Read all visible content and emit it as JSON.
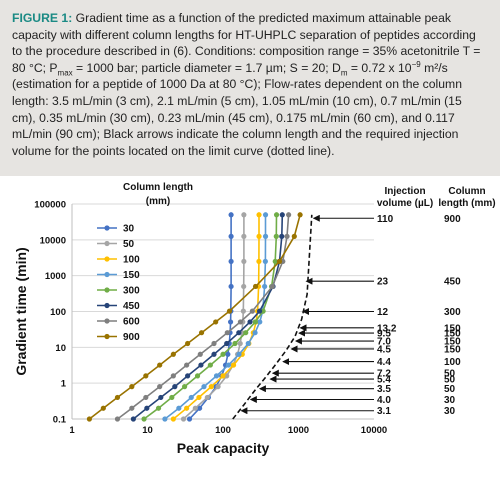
{
  "caption": {
    "label": "FIGURE 1:",
    "t1": " Gradient time as a function of the predicted maximum attainable peak capacity with different column lengths for HT-UHPLC separation of peptides according to the procedure described in (6). Conditions: composition range = 35% acetonitrile T = 80 °C; P",
    "pmax_sub": "max",
    "t2": " = 1000 bar; particle diameter = 1.7 µm; S = 20; D",
    "dm_sub": "m",
    "t3": " = 0.72 x 10",
    "exp": "−9",
    "t4": " m²/s (estimation for a peptide of 1000 Da at 80 °C); Flow-rates dependent on the column length: 3.5 mL/min (3 cm), 2.1 mL/min (5 cm), 1.05 mL/min (10 cm), 0.7 mL/min (15 cm), 0.35 mL/min (30 cm), 0.23 mL/min (45 cm), 0.175 mL/min (60 cm), and 0.117 mL/min (90 cm); Black arrows indicate the column length and the required injection volume for the points located on the limit curve (dotted line)."
  },
  "chart_data": {
    "type": "line",
    "xlabel": "Peak capacity",
    "ylabel": "Gradient time (min)",
    "x_scale": "log",
    "y_scale": "log",
    "xlim": [
      1,
      10000
    ],
    "ylim": [
      0.1,
      100000
    ],
    "x_ticks": [
      "1",
      "10",
      "100",
      "1000",
      "10000"
    ],
    "y_ticks": [
      "0.1",
      "1",
      "10",
      "100",
      "1000",
      "10000",
      "100000"
    ],
    "legend_title": "Column length (mm)",
    "legend_position": "top-left",
    "gt": [
      0.1,
      0.2,
      0.4,
      0.8,
      1.6,
      3.2,
      6.4,
      12.8,
      25.6,
      51.2,
      102.4,
      500,
      2500,
      12500,
      50000
    ],
    "series": [
      {
        "name": "30",
        "color": "#4472c4",
        "x": [
          36,
          49,
          64,
          81,
          96,
          108,
          116,
          121,
          124,
          126,
          127,
          128,
          128,
          128,
          128
        ]
      },
      {
        "name": "50",
        "color": "#a5a5a5",
        "x": [
          30,
          43,
          62,
          86,
          112,
          136,
          156,
          169,
          178,
          183,
          186,
          188,
          189,
          189,
          189
        ]
      },
      {
        "name": "100",
        "color": "#ffc000",
        "x": [
          22,
          33,
          48,
          70,
          100,
          138,
          180,
          220,
          252,
          274,
          287,
          296,
          299,
          300,
          300
        ]
      },
      {
        "name": "150",
        "color": "#5b9bd5",
        "x": [
          17,
          26,
          38,
          56,
          82,
          118,
          163,
          216,
          266,
          307,
          336,
          356,
          364,
          366,
          366
        ]
      },
      {
        "name": "300",
        "color": "#70ad47",
        "x": [
          9,
          14,
          21,
          31,
          46,
          68,
          100,
          144,
          200,
          268,
          340,
          440,
          492,
          508,
          512
        ]
      },
      {
        "name": "450",
        "color": "#264478",
        "x": [
          6.5,
          9.8,
          15,
          23,
          34,
          51,
          76,
          112,
          162,
          228,
          305,
          460,
          560,
          600,
          610
        ]
      },
      {
        "name": "600",
        "color": "#7f7f7f",
        "x": [
          4,
          6.2,
          9.5,
          14.5,
          22,
          33,
          50,
          76,
          114,
          170,
          245,
          450,
          620,
          705,
          740
        ]
      },
      {
        "name": "900",
        "color": "#997300",
        "x": [
          1.7,
          2.6,
          4,
          6.2,
          9.5,
          14.5,
          22,
          34,
          52,
          80,
          122,
          270,
          560,
          880,
          1050
        ]
      }
    ],
    "limit_curve": {
      "x": [
        135,
        190,
        260,
        370,
        480,
        680,
        900,
        1100,
        1300,
        1500
      ],
      "y": [
        0.1,
        0.25,
        0.6,
        1.5,
        3,
        8,
        20,
        60,
        300,
        50000
      ]
    },
    "arrow_col_header": "Injection volume (µL)",
    "length_col_header": "Column length (mm)",
    "arrows": [
      {
        "volume": "110",
        "length": "900",
        "gt": 40000,
        "pc": 1500
      },
      {
        "volume": "23",
        "length": "450",
        "gt": 700,
        "pc": 1200
      },
      {
        "volume": "12",
        "length": "300",
        "gt": 100,
        "pc": 1080
      },
      {
        "volume": "13.2",
        "length": "150",
        "gt": 35,
        "pc": 1000
      },
      {
        "volume": "9.5",
        "length": "150",
        "gt": 25,
        "pc": 960
      },
      {
        "volume": "7.0",
        "length": "150",
        "gt": 15,
        "pc": 870
      },
      {
        "volume": "4.5",
        "length": "150",
        "gt": 9,
        "pc": 760
      },
      {
        "volume": "4.4",
        "length": "100",
        "gt": 4,
        "pc": 590
      },
      {
        "volume": "7.2",
        "length": "50",
        "gt": 1.9,
        "pc": 430
      },
      {
        "volume": "5.4",
        "length": "50",
        "gt": 1.3,
        "pc": 400
      },
      {
        "volume": "3.5",
        "length": "50",
        "gt": 0.7,
        "pc": 290
      },
      {
        "volume": "4.0",
        "length": "30",
        "gt": 0.35,
        "pc": 220
      },
      {
        "volume": "3.1",
        "length": "30",
        "gt": 0.17,
        "pc": 165
      }
    ]
  }
}
